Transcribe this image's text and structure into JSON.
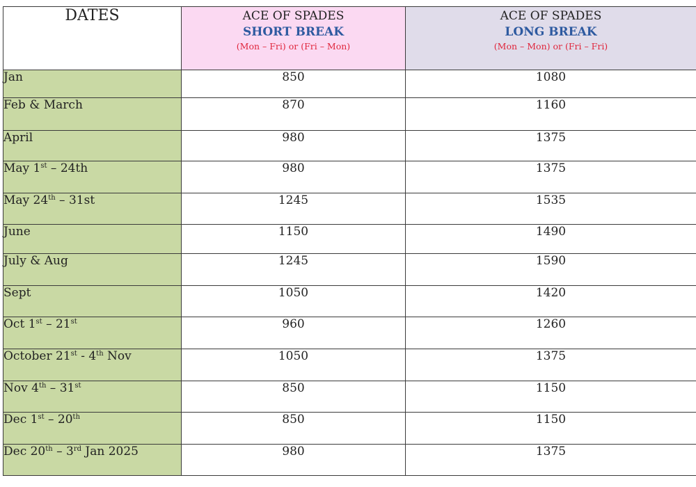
{
  "header": {
    "dates": "DATES",
    "short": {
      "title": "ACE OF SPADES",
      "break": "SHORT BREAK",
      "days": "(Mon – Fri) or (Fri – Mon)"
    },
    "long": {
      "title": "ACE OF SPADES",
      "break": "LONG BREAK",
      "days": "(Mon – Mon) or (Fri – Fri)"
    }
  },
  "colors": {
    "dates_column": "#c9d9a4",
    "short_header": "#fbd9f2",
    "long_header": "#e0dcea",
    "break_text": "#2e5aa0",
    "days_text": "#e0263c"
  },
  "rows": [
    {
      "date": [
        "Jan"
      ],
      "short": "850",
      "long": "1080"
    },
    {
      "date": [
        "Feb & March"
      ],
      "short": "870",
      "long": "1160"
    },
    {
      "date": [
        "April"
      ],
      "short": "980",
      "long": "1375"
    },
    {
      "date": [
        "May 1",
        "st",
        " – 24th"
      ],
      "short": "980",
      "long": "1375"
    },
    {
      "date": [
        "May 24",
        "th",
        " – 31st"
      ],
      "short": "1245",
      "long": "1535"
    },
    {
      "date": [
        "June"
      ],
      "short": "1150",
      "long": "1490"
    },
    {
      "date": [
        "July & Aug"
      ],
      "short": "1245",
      "long": "1590"
    },
    {
      "date": [
        "Sept"
      ],
      "short": "1050",
      "long": "1420"
    },
    {
      "date": [
        "Oct 1",
        "st",
        " – 21",
        "st",
        ""
      ],
      "short": "960",
      "long": "1260"
    },
    {
      "date": [
        "October 21",
        "st",
        " - 4",
        "th",
        " Nov"
      ],
      "short": "1050",
      "long": "1375"
    },
    {
      "date": [
        "Nov 4",
        "th",
        " – 31",
        "st",
        ""
      ],
      "short": "850",
      "long": "1150"
    },
    {
      "date": [
        "Dec 1",
        "st",
        " – 20",
        "th",
        ""
      ],
      "short": "850",
      "long": "1150"
    },
    {
      "date": [
        "Dec 20",
        "th",
        " – 3",
        "rd",
        " Jan 2025"
      ],
      "short": "980",
      "long": "1375"
    }
  ]
}
